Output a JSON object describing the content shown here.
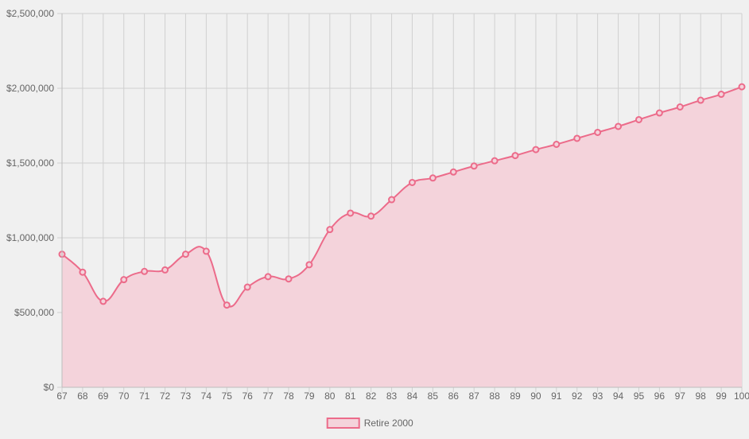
{
  "chart_data": {
    "type": "area",
    "title": "",
    "xlabel": "",
    "ylabel": "",
    "ylim": [
      0,
      2500000
    ],
    "yticks": [
      0,
      500000,
      1000000,
      1500000,
      2000000,
      2500000
    ],
    "ytick_labels": [
      "$0",
      "$500,000",
      "$1,000,000",
      "$1,500,000",
      "$2,000,000",
      "$2,500,000"
    ],
    "grid": true,
    "legend": "bottom",
    "categories": [
      "67",
      "68",
      "69",
      "70",
      "71",
      "72",
      "73",
      "74",
      "75",
      "76",
      "77",
      "78",
      "79",
      "80",
      "81",
      "82",
      "83",
      "84",
      "85",
      "86",
      "87",
      "88",
      "89",
      "90",
      "91",
      "92",
      "93",
      "94",
      "95",
      "96",
      "97",
      "98",
      "99",
      "100"
    ],
    "series": [
      {
        "name": "Retire 2000",
        "color": "#ec6b8a",
        "fill": "#f4d3db",
        "values": [
          890000,
          770000,
          575000,
          720000,
          775000,
          785000,
          890000,
          910000,
          550000,
          670000,
          740000,
          725000,
          820000,
          1055000,
          1165000,
          1145000,
          1255000,
          1370000,
          1400000,
          1440000,
          1480000,
          1515000,
          1550000,
          1590000,
          1625000,
          1665000,
          1705000,
          1745000,
          1790000,
          1835000,
          1875000,
          1920000,
          1960000,
          2010000
        ]
      }
    ]
  }
}
